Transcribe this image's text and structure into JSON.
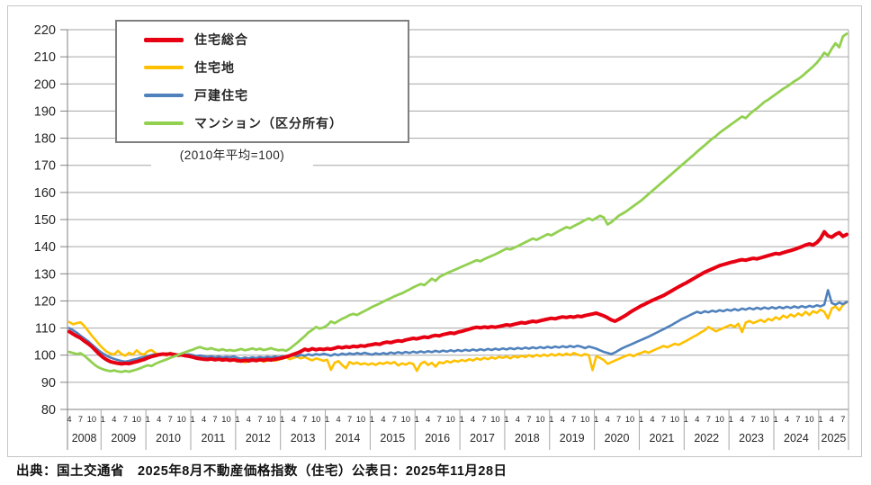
{
  "source_line": "出典：国土交通省　2025年8月不動産価格指数（住宅）公表日：2025年11月28日",
  "note": "(2010年平均=100)",
  "colors": {
    "red": "#e60012",
    "yellow": "#ffc000",
    "blue": "#4f81bd",
    "green": "#92d050",
    "gridline": "#a6a6a6",
    "axis": "#808080",
    "frame": "#c6c6c6"
  },
  "chart_data": {
    "type": "line",
    "title": "",
    "xlabel": "",
    "ylabel": "",
    "x_start": "2008-04",
    "x_end": "2025-08",
    "frequency": "monthly",
    "ylim": [
      80,
      220
    ],
    "y_tick_step": 10,
    "grid": true,
    "legend_position": "top-left-inside",
    "draw_order": [
      1,
      2,
      0,
      3
    ],
    "x_ticks": [
      {
        "year": "2008",
        "months": [
          4,
          7,
          10
        ]
      },
      {
        "year": "2009",
        "months": [
          1,
          4,
          7,
          10
        ]
      },
      {
        "year": "2010",
        "months": [
          1,
          4,
          7,
          10
        ]
      },
      {
        "year": "2011",
        "months": [
          1,
          4,
          7,
          10
        ]
      },
      {
        "year": "2012",
        "months": [
          1,
          4,
          7,
          10
        ]
      },
      {
        "year": "2013",
        "months": [
          1,
          4,
          7,
          10
        ]
      },
      {
        "year": "2014",
        "months": [
          1,
          4,
          7,
          10
        ]
      },
      {
        "year": "2015",
        "months": [
          1,
          4,
          7,
          10
        ]
      },
      {
        "year": "2016",
        "months": [
          1,
          4,
          7,
          10
        ]
      },
      {
        "year": "2017",
        "months": [
          1,
          4,
          7,
          10
        ]
      },
      {
        "year": "2018",
        "months": [
          1,
          4,
          7,
          10
        ]
      },
      {
        "year": "2019",
        "months": [
          1,
          4,
          7,
          10
        ]
      },
      {
        "year": "2020",
        "months": [
          1,
          4,
          7,
          10
        ]
      },
      {
        "year": "2021",
        "months": [
          1,
          4,
          7,
          10
        ]
      },
      {
        "year": "2022",
        "months": [
          1,
          4,
          7,
          10
        ]
      },
      {
        "year": "2023",
        "months": [
          1,
          4,
          7,
          10
        ]
      },
      {
        "year": "2024",
        "months": [
          1,
          4,
          7,
          10
        ]
      },
      {
        "year": "2025",
        "months": [
          1,
          4,
          7
        ]
      }
    ],
    "series": [
      {
        "name": "住宅総合",
        "color": "#e60012",
        "width": 4,
        "values": [
          108.7,
          107.8,
          107.0,
          106.3,
          105.2,
          104.3,
          103.2,
          101.8,
          100.4,
          99.2,
          98.3,
          97.6,
          97.3,
          97.0,
          96.8,
          97.0,
          96.9,
          97.3,
          97.6,
          98.0,
          98.4,
          99.0,
          99.5,
          99.8,
          100.2,
          100.4,
          100.3,
          100.5,
          100.2,
          100.0,
          100.1,
          99.8,
          99.6,
          99.3,
          98.9,
          98.7,
          98.5,
          98.4,
          98.6,
          98.3,
          98.5,
          98.2,
          98.4,
          98.1,
          98.3,
          98.0,
          97.8,
          98.1,
          97.9,
          98.2,
          98.0,
          98.3,
          98.1,
          98.4,
          98.2,
          98.5,
          98.7,
          99.0,
          99.4,
          99.8,
          100.3,
          100.8,
          101.4,
          102.2,
          101.8,
          102.4,
          102.0,
          102.3,
          102.1,
          102.4,
          102.2,
          102.6,
          103.0,
          102.7,
          103.1,
          102.9,
          103.3,
          103.1,
          103.5,
          103.3,
          103.7,
          103.9,
          104.2,
          104.0,
          104.5,
          104.8,
          104.6,
          105.0,
          105.3,
          105.1,
          105.6,
          105.9,
          106.2,
          106.0,
          106.4,
          106.7,
          106.5,
          107.0,
          107.3,
          107.1,
          107.6,
          107.9,
          108.2,
          108.0,
          108.5,
          108.8,
          109.2,
          109.6,
          110.0,
          110.3,
          110.1,
          110.4,
          110.2,
          110.5,
          110.3,
          110.6,
          110.9,
          111.2,
          111.0,
          111.4,
          111.7,
          112.0,
          111.8,
          112.2,
          112.5,
          112.3,
          112.7,
          113.0,
          113.3,
          113.6,
          113.4,
          113.8,
          114.1,
          113.9,
          114.2,
          114.0,
          114.4,
          114.2,
          114.6,
          114.9,
          115.2,
          115.5,
          115.0,
          114.5,
          113.8,
          113.0,
          112.5,
          113.2,
          114.0,
          114.8,
          115.8,
          116.6,
          117.4,
          118.2,
          118.8,
          119.5,
          120.2,
          120.8,
          121.4,
          122.0,
          122.8,
          123.6,
          124.4,
          125.2,
          125.9,
          126.6,
          127.4,
          128.2,
          129.0,
          129.8,
          130.6,
          131.2,
          131.8,
          132.4,
          133.0,
          133.4,
          133.8,
          134.2,
          134.5,
          134.9,
          135.2,
          135.0,
          135.4,
          135.7,
          135.5,
          135.9,
          136.3,
          136.7,
          137.1,
          137.5,
          137.3,
          137.8,
          138.2,
          138.6,
          139.0,
          139.5,
          140.0,
          140.6,
          141.0,
          140.6,
          141.5,
          143.0,
          145.5,
          144.0,
          143.5,
          144.5,
          145.2,
          143.8,
          144.5
        ]
      },
      {
        "name": "住宅地",
        "color": "#ffc000",
        "width": 2.6,
        "values": [
          112.2,
          111.4,
          111.8,
          112.1,
          110.8,
          109.0,
          107.2,
          105.6,
          104.0,
          102.5,
          101.3,
          100.6,
          100.2,
          101.6,
          100.4,
          99.8,
          100.9,
          100.2,
          101.8,
          100.6,
          100.2,
          101.5,
          101.9,
          100.8,
          100.2,
          100.6,
          99.8,
          100.9,
          100.3,
          99.7,
          100.1,
          99.5,
          99.8,
          99.2,
          98.8,
          99.3,
          98.6,
          98.2,
          98.8,
          98.1,
          98.5,
          97.9,
          98.3,
          97.8,
          98.2,
          97.6,
          98.0,
          97.4,
          97.9,
          98.3,
          97.7,
          98.1,
          97.6,
          98.0,
          98.4,
          97.9,
          98.3,
          98.7,
          99.2,
          98.5,
          99.0,
          99.4,
          98.8,
          99.3,
          98.6,
          98.1,
          98.8,
          98.4,
          97.9,
          98.3,
          94.6,
          97.2,
          97.8,
          96.4,
          95.2,
          97.5,
          96.8,
          97.3,
          96.6,
          97.0,
          96.5,
          97.0,
          96.4,
          97.2,
          96.8,
          97.4,
          96.9,
          97.5,
          96.2,
          97.0,
          96.5,
          97.2,
          96.8,
          94.2,
          96.8,
          97.6,
          96.4,
          97.2,
          95.8,
          97.4,
          97.0,
          97.8,
          97.3,
          98.0,
          97.6,
          98.2,
          97.8,
          98.5,
          98.0,
          98.8,
          98.3,
          99.0,
          98.5,
          99.2,
          98.7,
          99.4,
          99.0,
          99.5,
          98.8,
          99.6,
          99.1,
          99.8,
          99.3,
          100.0,
          99.4,
          100.1,
          99.6,
          100.2,
          99.7,
          100.4,
          99.8,
          100.5,
          99.9,
          100.6,
          100.0,
          100.8,
          100.2,
          99.8,
          100.4,
          100.0,
          94.5,
          99.6,
          99.0,
          98.2,
          96.8,
          97.4,
          98.0,
          98.6,
          99.2,
          99.8,
          100.2,
          99.6,
          100.4,
          100.8,
          101.4,
          100.9,
          101.6,
          102.2,
          102.8,
          103.4,
          102.9,
          103.6,
          104.2,
          103.8,
          104.5,
          105.2,
          106.0,
          106.8,
          107.5,
          108.4,
          109.2,
          110.4,
          109.6,
          108.8,
          109.4,
          110.0,
          110.6,
          111.2,
          110.4,
          111.6,
          108.5,
          112.0,
          112.6,
          111.8,
          112.4,
          113.0,
          112.2,
          113.4,
          112.8,
          114.0,
          113.2,
          114.6,
          113.8,
          115.0,
          114.2,
          115.4,
          114.6,
          116.0,
          114.8,
          116.2,
          115.6,
          116.8,
          116.0,
          113.5,
          117.2,
          118.0,
          116.5,
          118.5,
          119.5
        ]
      },
      {
        "name": "戸建住宅",
        "color": "#4f81bd",
        "width": 2.6,
        "values": [
          110.0,
          109.2,
          108.3,
          107.2,
          106.2,
          105.2,
          104.0,
          102.8,
          101.6,
          100.6,
          99.8,
          99.1,
          98.6,
          98.2,
          97.8,
          97.6,
          97.9,
          98.3,
          98.6,
          99.0,
          99.3,
          99.7,
          100.0,
          100.3,
          100.1,
          100.4,
          100.6,
          100.3,
          100.5,
          100.2,
          100.4,
          100.1,
          100.3,
          100.0,
          99.7,
          99.9,
          99.6,
          99.3,
          99.6,
          99.2,
          99.5,
          99.1,
          99.4,
          99.2,
          99.5,
          99.0,
          98.7,
          99.1,
          98.8,
          99.2,
          98.9,
          99.3,
          99.0,
          99.4,
          99.1,
          99.5,
          99.2,
          99.6,
          99.3,
          99.7,
          100.0,
          99.6,
          100.1,
          99.8,
          100.3,
          99.9,
          100.4,
          100.1,
          100.5,
          100.2,
          99.8,
          100.4,
          100.0,
          100.6,
          100.2,
          100.7,
          100.3,
          100.8,
          100.4,
          100.9,
          100.5,
          100.2,
          100.7,
          100.3,
          100.8,
          100.4,
          101.0,
          100.6,
          101.1,
          100.7,
          101.2,
          100.8,
          101.3,
          100.9,
          101.4,
          101.0,
          101.5,
          101.1,
          101.6,
          101.2,
          101.7,
          101.3,
          101.8,
          101.4,
          101.9,
          101.5,
          102.0,
          101.6,
          102.1,
          101.7,
          102.2,
          101.8,
          102.3,
          101.9,
          102.4,
          102.0,
          102.5,
          102.1,
          102.6,
          102.2,
          102.7,
          102.3,
          102.8,
          102.4,
          102.9,
          102.5,
          103.0,
          102.6,
          103.1,
          102.7,
          103.2,
          102.8,
          103.3,
          102.9,
          103.4,
          103.0,
          103.5,
          103.1,
          102.6,
          103.2,
          102.8,
          102.4,
          101.8,
          101.2,
          100.8,
          100.4,
          101.0,
          101.8,
          102.6,
          103.2,
          103.8,
          104.4,
          105.0,
          105.6,
          106.2,
          106.8,
          107.5,
          108.2,
          108.9,
          109.6,
          110.3,
          111.0,
          111.8,
          112.6,
          113.4,
          114.0,
          114.7,
          115.4,
          116.0,
          115.5,
          116.2,
          115.8,
          116.4,
          116.0,
          116.6,
          116.2,
          116.8,
          116.4,
          117.0,
          116.5,
          117.2,
          116.8,
          117.4,
          116.9,
          117.5,
          117.0,
          117.6,
          117.1,
          117.7,
          117.2,
          117.8,
          117.3,
          117.9,
          117.4,
          118.0,
          117.5,
          118.1,
          117.6,
          118.2,
          117.8,
          118.4,
          118.0,
          118.6,
          124.0,
          119.2,
          118.6,
          119.4,
          118.8,
          119.6
        ]
      },
      {
        "name": "マンション（区分所有）",
        "color": "#92d050",
        "width": 2.8,
        "values": [
          101.2,
          100.8,
          100.4,
          100.7,
          99.8,
          98.6,
          97.4,
          96.2,
          95.4,
          94.8,
          94.4,
          94.1,
          94.4,
          94.0,
          93.8,
          94.2,
          93.9,
          94.3,
          94.7,
          95.2,
          95.8,
          96.3,
          96.0,
          96.8,
          97.4,
          97.9,
          98.4,
          99.0,
          99.5,
          100.0,
          100.6,
          101.1,
          101.6,
          102.0,
          102.6,
          103.0,
          102.5,
          102.2,
          102.6,
          102.1,
          101.8,
          102.2,
          101.7,
          101.9,
          101.6,
          101.9,
          102.3,
          101.8,
          102.1,
          102.5,
          102.0,
          102.4,
          101.9,
          102.2,
          102.6,
          102.1,
          101.8,
          102.0,
          101.6,
          102.4,
          103.5,
          104.6,
          105.8,
          107.0,
          108.4,
          109.3,
          110.4,
          109.8,
          110.2,
          111.0,
          112.4,
          111.8,
          112.6,
          113.4,
          114.0,
          114.8,
          115.2,
          114.8,
          115.6,
          116.3,
          117.0,
          117.8,
          118.4,
          119.0,
          119.7,
          120.4,
          121.0,
          121.7,
          122.3,
          122.8,
          123.5,
          124.2,
          125.0,
          125.6,
          126.2,
          125.8,
          127.0,
          128.2,
          127.4,
          128.8,
          129.5,
          130.2,
          130.8,
          131.4,
          132.0,
          132.6,
          133.2,
          133.8,
          134.4,
          135.0,
          134.6,
          135.4,
          136.0,
          136.6,
          137.2,
          137.9,
          138.6,
          139.3,
          139.0,
          139.6,
          140.2,
          140.9,
          141.6,
          142.3,
          143.0,
          142.5,
          143.2,
          143.9,
          144.6,
          144.2,
          145.0,
          145.8,
          146.5,
          147.2,
          146.8,
          147.6,
          148.3,
          149.0,
          149.8,
          150.4,
          149.8,
          150.6,
          151.4,
          150.8,
          148.2,
          149.0,
          150.2,
          151.4,
          152.2,
          153.0,
          154.0,
          155.0,
          156.0,
          157.0,
          158.2,
          159.4,
          160.6,
          161.8,
          163.0,
          164.2,
          165.4,
          166.6,
          167.8,
          169.0,
          170.2,
          171.4,
          172.6,
          173.8,
          175.0,
          176.2,
          177.4,
          178.6,
          179.8,
          180.8,
          182.0,
          183.0,
          184.0,
          185.0,
          186.0,
          187.0,
          188.0,
          187.4,
          188.8,
          190.0,
          191.0,
          192.2,
          193.4,
          194.2,
          195.2,
          196.2,
          197.2,
          198.2,
          199.0,
          200.0,
          201.0,
          201.8,
          202.8,
          204.0,
          205.2,
          206.4,
          207.8,
          209.5,
          211.5,
          210.5,
          213.0,
          215.0,
          213.5,
          217.5,
          218.5
        ]
      }
    ]
  }
}
